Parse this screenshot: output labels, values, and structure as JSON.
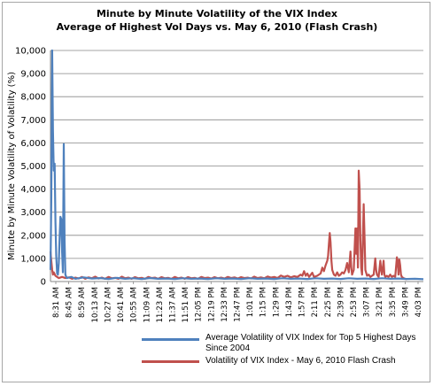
{
  "chart_data": {
    "type": "line",
    "title": "Minute by Minute Volatility  of the VIX Index",
    "subtitle": "Average of Highest Vol Days vs. May 6, 2010 (Flash Crash)",
    "ylabel": "Minute by Minute Volatility of Volatility (%)",
    "xlabel": "",
    "ylim": [
      0,
      10000
    ],
    "yticks": [
      "0",
      "1,000",
      "2,000",
      "3,000",
      "4,000",
      "5,000",
      "6,000",
      "7,000",
      "8,000",
      "9,000",
      "10,000"
    ],
    "x_tick_labels": [
      "8:31 AM",
      "8:45 AM",
      "8:59 AM",
      "10:13 AM",
      "10:27 AM",
      "10:41 AM",
      "10:55 AM",
      "11:09 AM",
      "11:23 AM",
      "11:37 AM",
      "11:51 AM",
      "12:05 PM",
      "12:19 PM",
      "12:33 PM",
      "12:47 PM",
      "1:01 PM",
      "1:15 PM",
      "1:29 PM",
      "1:43 PM",
      "1:57 PM",
      "2:11 PM",
      "2:25 PM",
      "2:39 PM",
      "2:53 PM",
      "3:07 PM",
      "3:21 PM",
      "3:35 PM",
      "3:49 PM",
      "4:03 PM"
    ],
    "x_range_minutes": [
      0,
      450
    ],
    "grid": true,
    "legend_position": "bottom",
    "series": [
      {
        "name": "Average Volatility of VIX Index for Top 5 Highest Days Since 2004",
        "color": "#4f81bd",
        "points": [
          [
            0,
            500
          ],
          [
            1,
            3500
          ],
          [
            2,
            10000
          ],
          [
            3,
            6500
          ],
          [
            4,
            4800
          ],
          [
            5,
            5100
          ],
          [
            6,
            2600
          ],
          [
            7,
            1100
          ],
          [
            8,
            350
          ],
          [
            9,
            300
          ],
          [
            10,
            800
          ],
          [
            11,
            1900
          ],
          [
            12,
            2800
          ],
          [
            13,
            2700
          ],
          [
            14,
            1300
          ],
          [
            15,
            400
          ],
          [
            16,
            5950
          ],
          [
            17,
            1800
          ],
          [
            18,
            300
          ],
          [
            19,
            200
          ],
          [
            20,
            150
          ],
          [
            25,
            200
          ],
          [
            30,
            120
          ],
          [
            40,
            180
          ],
          [
            50,
            130
          ],
          [
            60,
            150
          ],
          [
            70,
            110
          ],
          [
            80,
            160
          ],
          [
            90,
            120
          ],
          [
            100,
            140
          ],
          [
            110,
            110
          ],
          [
            120,
            150
          ],
          [
            130,
            120
          ],
          [
            140,
            130
          ],
          [
            150,
            110
          ],
          [
            160,
            140
          ],
          [
            170,
            120
          ],
          [
            180,
            130
          ],
          [
            190,
            110
          ],
          [
            200,
            140
          ],
          [
            210,
            120
          ],
          [
            220,
            130
          ],
          [
            230,
            110
          ],
          [
            240,
            140
          ],
          [
            250,
            120
          ],
          [
            260,
            130
          ],
          [
            270,
            110
          ],
          [
            280,
            140
          ],
          [
            290,
            120
          ],
          [
            300,
            130
          ],
          [
            310,
            110
          ],
          [
            320,
            140
          ],
          [
            330,
            120
          ],
          [
            340,
            130
          ],
          [
            350,
            110
          ],
          [
            360,
            140
          ],
          [
            370,
            120
          ],
          [
            380,
            130
          ],
          [
            390,
            110
          ],
          [
            400,
            140
          ],
          [
            410,
            120
          ],
          [
            420,
            130
          ],
          [
            430,
            110
          ],
          [
            440,
            120
          ],
          [
            450,
            100
          ]
        ]
      },
      {
        "name": "Volatility of VIX Index - May 6, 2010 Flash Crash",
        "color": "#c0504d",
        "points": [
          [
            0,
            1300
          ],
          [
            1,
            900
          ],
          [
            2,
            500
          ],
          [
            3,
            300
          ],
          [
            4,
            400
          ],
          [
            6,
            250
          ],
          [
            8,
            200
          ],
          [
            10,
            150
          ],
          [
            14,
            200
          ],
          [
            18,
            150
          ],
          [
            22,
            180
          ],
          [
            26,
            120
          ],
          [
            30,
            170
          ],
          [
            34,
            130
          ],
          [
            38,
            200
          ],
          [
            42,
            120
          ],
          [
            46,
            180
          ],
          [
            50,
            140
          ],
          [
            54,
            210
          ],
          [
            58,
            130
          ],
          [
            62,
            170
          ],
          [
            66,
            120
          ],
          [
            70,
            200
          ],
          [
            74,
            140
          ],
          [
            78,
            160
          ],
          [
            82,
            120
          ],
          [
            86,
            210
          ],
          [
            90,
            140
          ],
          [
            94,
            170
          ],
          [
            98,
            120
          ],
          [
            102,
            190
          ],
          [
            106,
            140
          ],
          [
            110,
            160
          ],
          [
            114,
            120
          ],
          [
            118,
            200
          ],
          [
            122,
            150
          ],
          [
            126,
            170
          ],
          [
            130,
            120
          ],
          [
            134,
            190
          ],
          [
            138,
            140
          ],
          [
            142,
            160
          ],
          [
            146,
            120
          ],
          [
            150,
            200
          ],
          [
            154,
            140
          ],
          [
            158,
            170
          ],
          [
            162,
            120
          ],
          [
            166,
            190
          ],
          [
            170,
            140
          ],
          [
            174,
            160
          ],
          [
            178,
            120
          ],
          [
            182,
            200
          ],
          [
            186,
            150
          ],
          [
            190,
            170
          ],
          [
            194,
            130
          ],
          [
            198,
            190
          ],
          [
            202,
            140
          ],
          [
            206,
            170
          ],
          [
            210,
            130
          ],
          [
            214,
            200
          ],
          [
            218,
            150
          ],
          [
            222,
            180
          ],
          [
            226,
            130
          ],
          [
            230,
            190
          ],
          [
            234,
            150
          ],
          [
            238,
            170
          ],
          [
            242,
            130
          ],
          [
            246,
            210
          ],
          [
            250,
            150
          ],
          [
            254,
            180
          ],
          [
            258,
            140
          ],
          [
            262,
            220
          ],
          [
            266,
            170
          ],
          [
            270,
            200
          ],
          [
            274,
            150
          ],
          [
            278,
            260
          ],
          [
            282,
            200
          ],
          [
            286,
            250
          ],
          [
            290,
            180
          ],
          [
            294,
            230
          ],
          [
            298,
            200
          ],
          [
            302,
            300
          ],
          [
            304,
            250
          ],
          [
            306,
            450
          ],
          [
            308,
            250
          ],
          [
            310,
            350
          ],
          [
            312,
            200
          ],
          [
            316,
            380
          ],
          [
            318,
            200
          ],
          [
            322,
            250
          ],
          [
            326,
            350
          ],
          [
            328,
            600
          ],
          [
            330,
            450
          ],
          [
            332,
            700
          ],
          [
            334,
            900
          ],
          [
            335,
            1100
          ],
          [
            336,
            1600
          ],
          [
            337,
            2100
          ],
          [
            338,
            1700
          ],
          [
            339,
            900
          ],
          [
            340,
            500
          ],
          [
            342,
            300
          ],
          [
            344,
            250
          ],
          [
            346,
            400
          ],
          [
            348,
            250
          ],
          [
            350,
            300
          ],
          [
            352,
            400
          ],
          [
            354,
            350
          ],
          [
            356,
            500
          ],
          [
            358,
            800
          ],
          [
            360,
            400
          ],
          [
            362,
            1300
          ],
          [
            363,
            600
          ],
          [
            364,
            300
          ],
          [
            366,
            500
          ],
          [
            368,
            2300
          ],
          [
            369,
            1200
          ],
          [
            370,
            2300
          ],
          [
            371,
            600
          ],
          [
            372,
            4800
          ],
          [
            373,
            4000
          ],
          [
            374,
            1800
          ],
          [
            375,
            600
          ],
          [
            376,
            300
          ],
          [
            378,
            3350
          ],
          [
            379,
            1900
          ],
          [
            380,
            500
          ],
          [
            382,
            250
          ],
          [
            384,
            300
          ],
          [
            386,
            200
          ],
          [
            388,
            250
          ],
          [
            390,
            300
          ],
          [
            392,
            1000
          ],
          [
            393,
            500
          ],
          [
            394,
            300
          ],
          [
            396,
            200
          ],
          [
            398,
            900
          ],
          [
            399,
            500
          ],
          [
            400,
            300
          ],
          [
            402,
            900
          ],
          [
            403,
            300
          ],
          [
            404,
            200
          ],
          [
            406,
            250
          ],
          [
            408,
            200
          ],
          [
            410,
            300
          ],
          [
            412,
            200
          ],
          [
            414,
            250
          ],
          [
            416,
            200
          ],
          [
            418,
            1050
          ],
          [
            419,
            900
          ],
          [
            420,
            300
          ],
          [
            421,
            950
          ],
          [
            422,
            700
          ],
          [
            423,
            300
          ],
          [
            424,
            200
          ],
          [
            426,
            150
          ],
          [
            428,
            120
          ],
          [
            430,
            100
          ]
        ]
      }
    ]
  }
}
